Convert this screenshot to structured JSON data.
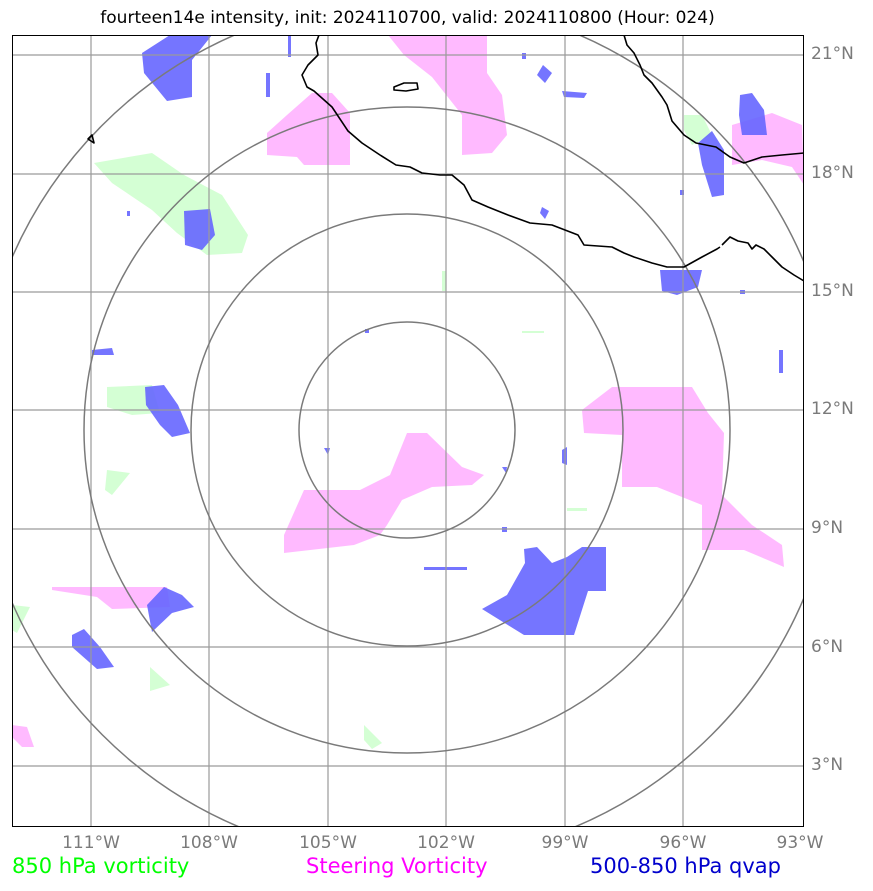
{
  "title": "fourteen14e intensity, init: 2024110700, valid: 2024110800 (Hour: 024)",
  "lat_labels": [
    "21°N",
    "18°N",
    "15°N",
    "12°N",
    "9°N",
    "6°N",
    "3°N"
  ],
  "lon_labels": [
    "111°W",
    "108°W",
    "105°W",
    "102°W",
    "99°W",
    "96°W",
    "93°W"
  ],
  "legend": {
    "vorticity_850": {
      "label": "850 hPa vorticity",
      "color": "#00ff00"
    },
    "steering_vorticity": {
      "label": "Steering Vorticity",
      "color": "#ff00ff"
    },
    "qvap_500_850": {
      "label": "500-850 hPa qvap",
      "color": "#0000cc"
    }
  },
  "colors": {
    "vorticity_fill": "#ccffcc",
    "steering_fill": "#ffb3ff",
    "qvap_fill": "#6666ff",
    "grid": "#9a9a9a",
    "range_rings": "#7a7a7a",
    "coastline": "#000000"
  }
}
